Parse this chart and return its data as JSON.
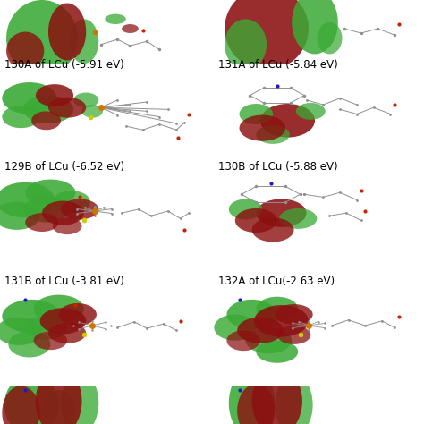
{
  "bg_color": "#ffffff",
  "label_fontsize": 8.5,
  "label_color": "#000000",
  "labels": [
    [
      "130A of LCu (-5.91 eV)",
      "131A of LCu (-5.84 eV)"
    ],
    [
      "129B of LCu (-6.52 eV)",
      "130B of LCu (-5.88 eV)"
    ],
    [
      "131B of LCu (-3.81 eV)",
      "132A of LCu(-2.63 eV)"
    ],
    [
      "",
      ""
    ]
  ],
  "gc": "#3aaa35",
  "rc": "#8b1010",
  "gray": "#909090",
  "lgray": "#bbbbbb",
  "blue": "#1a1acc",
  "red_atom": "#cc2200",
  "orange": "#cc7700",
  "yellow": "#ccbb00"
}
